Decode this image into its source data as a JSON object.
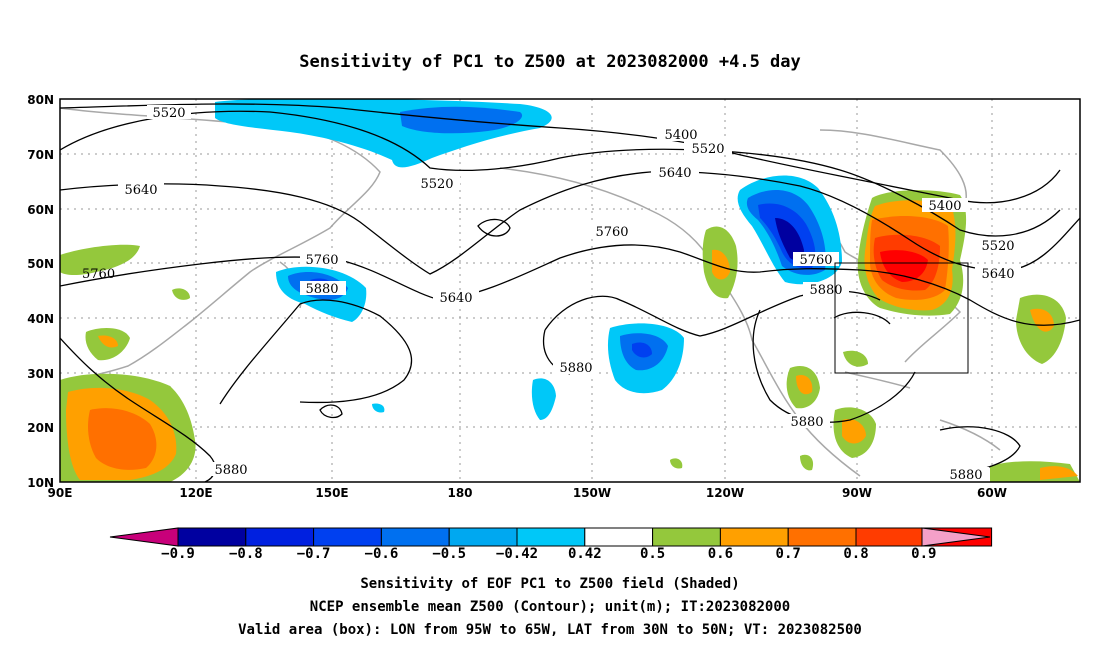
{
  "title": "Sensitivity of PC1 to Z500 at 2023082000 +4.5 day",
  "map": {
    "lat_ticks": [
      "80N",
      "70N",
      "60N",
      "50N",
      "40N",
      "30N",
      "20N",
      "10N"
    ],
    "lon_ticks": [
      "90E",
      "120E",
      "150E",
      "180",
      "150W",
      "120W",
      "90W",
      "60W"
    ],
    "contour_labels": [
      "5520",
      "5400",
      "5520",
      "5520",
      "5640",
      "5640",
      "5760",
      "5760",
      "5760",
      "5880",
      "5640",
      "5400",
      "5520",
      "5640",
      "5880",
      "5880",
      "5880",
      "5880",
      "5880"
    ],
    "box": {
      "lon_west": "95W",
      "lon_east": "65W",
      "lat_south": "30N",
      "lat_north": "50N"
    }
  },
  "colorbar": {
    "labels": [
      "−0.9",
      "−0.8",
      "−0.7",
      "−0.6",
      "−0.5",
      "−0.42",
      "0.42",
      "0.5",
      "0.6",
      "0.7",
      "0.8",
      "0.9"
    ],
    "colors": [
      "#0000a0",
      "#0020e0",
      "#0040f0",
      "#0070f0",
      "#00a8f0",
      "#00c8f8",
      "#ffffff",
      "#94c83c",
      "#ffa000",
      "#ff7000",
      "#ff3c00",
      "#ff0000"
    ],
    "low_end_color": "#c8007a",
    "high_end_color": "#f4a0c8"
  },
  "caption": {
    "line1": "Sensitivity of EOF PC1 to Z500 field (Shaded)",
    "line2": "NCEP ensemble mean Z500 (Contour); unit(m); IT:2023082000",
    "line3": "Valid area (box): LON from 95W to 65W, LAT from 30N to 50N; VT: 2023082500"
  }
}
